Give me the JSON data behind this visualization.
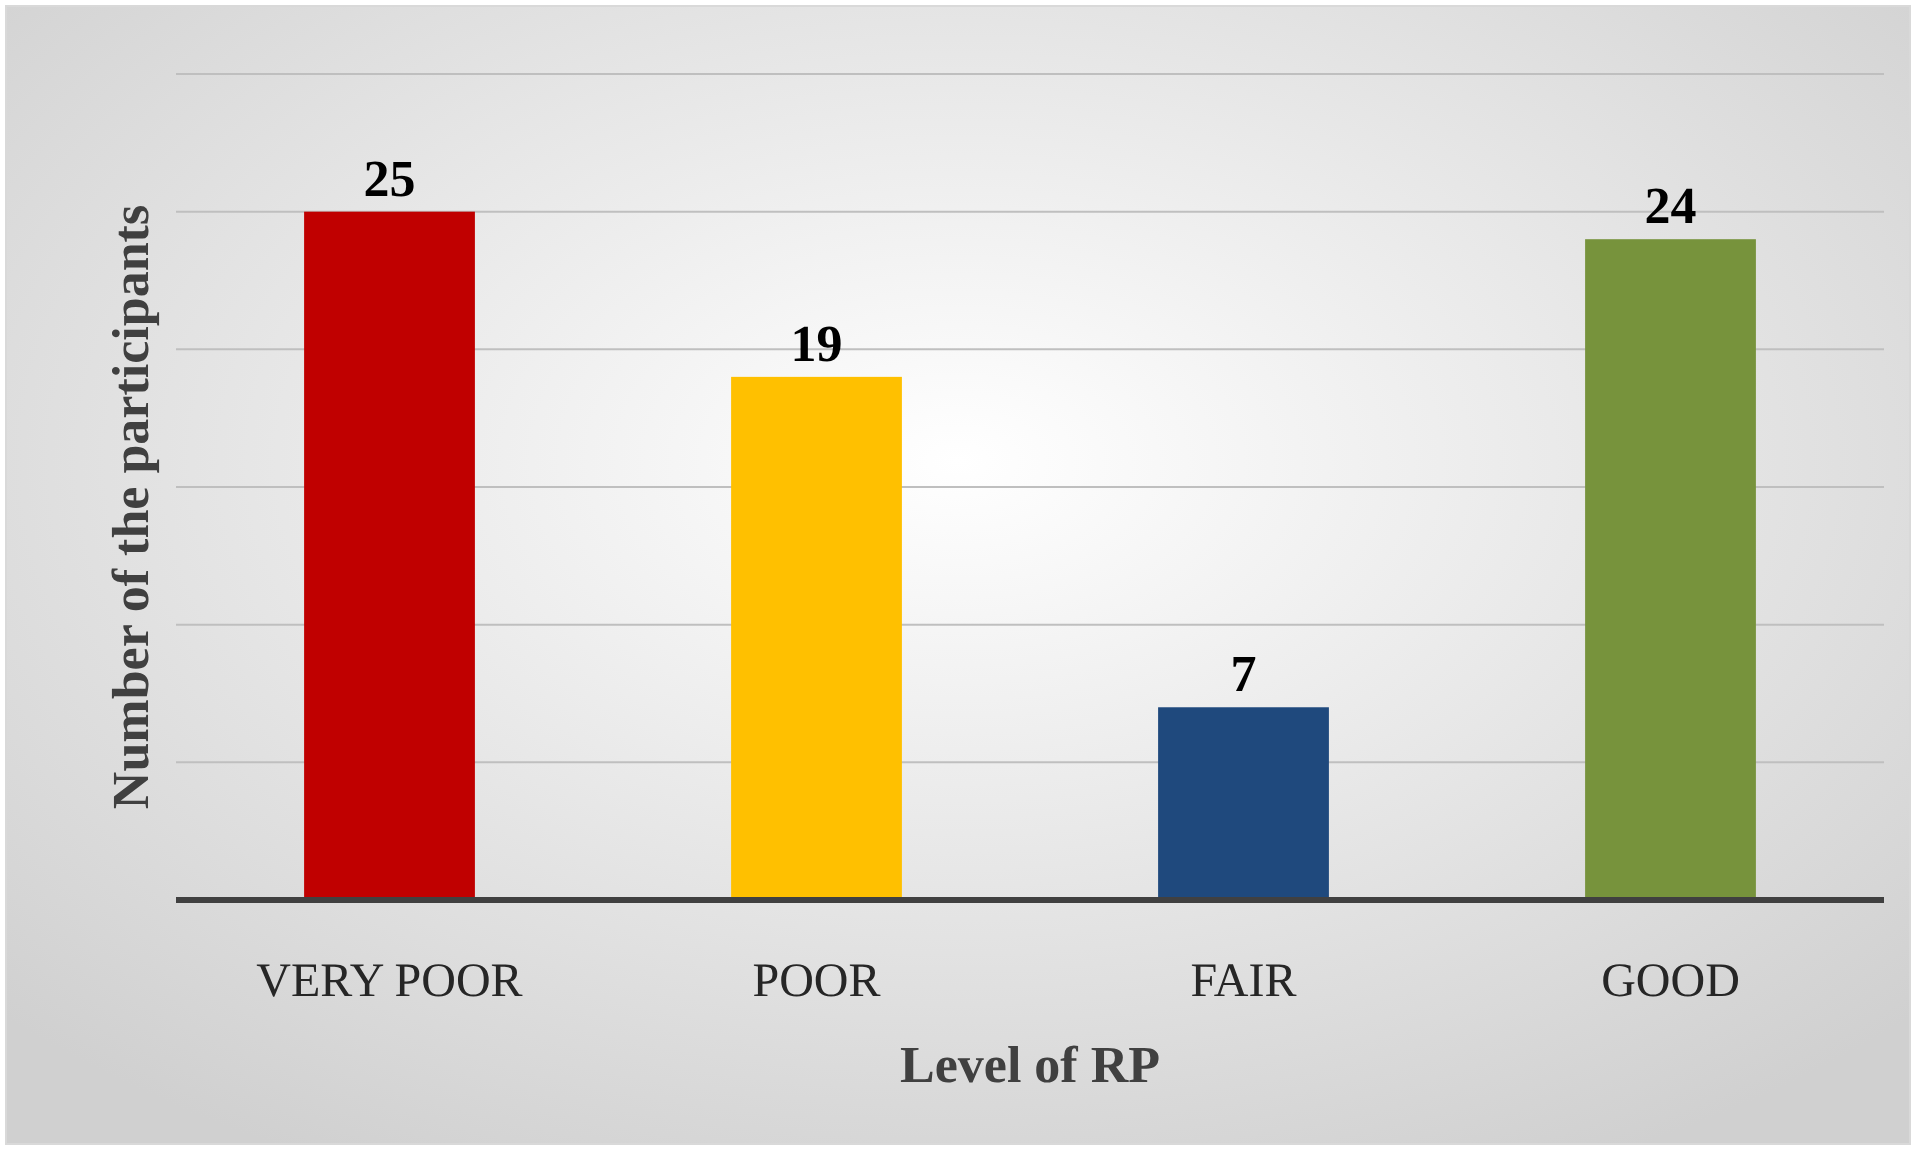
{
  "chart_data": {
    "type": "bar",
    "xlabel": "Level of RP",
    "ylabel": "Number of the participants",
    "categories": [
      "VERY POOR",
      "POOR",
      "FAIR",
      "GOOD"
    ],
    "values": [
      25,
      19,
      7,
      24
    ],
    "colors": [
      "#c00000",
      "#ffc000",
      "#1f497d",
      "#77933c"
    ],
    "ylim": [
      0,
      30
    ],
    "yticks": [
      {
        "value": 0,
        "label": null
      },
      {
        "value": 5,
        "label": null
      },
      {
        "value": 10,
        "label": null
      },
      {
        "value": 15,
        "label": null
      },
      {
        "value": 20,
        "label": null
      },
      {
        "value": 25,
        "label": null
      },
      {
        "value": 30,
        "label": null
      }
    ],
    "grid": "y",
    "tick_labels": "x",
    "data_labels": true
  }
}
